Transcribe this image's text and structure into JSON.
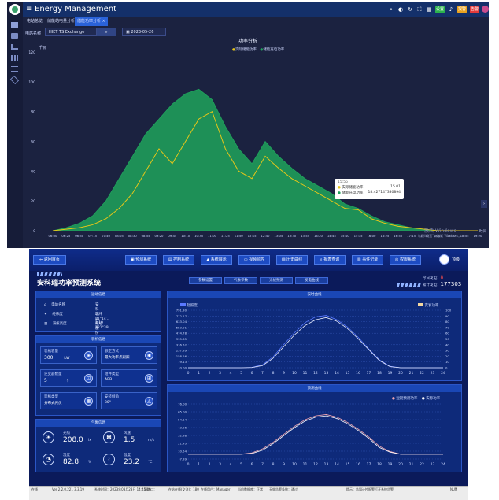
{
  "app1": {
    "title": "Energy Management",
    "tabs": [
      "电站总览",
      "储能站电量分析 ×",
      "储能功率分析 ×"
    ],
    "station_label": "电站名称",
    "station_value": "HIET TS Exchange",
    "date_value": "2023-05-26",
    "chart_title": "功率分析",
    "legend": [
      "实际储能功率",
      "储能充电功率"
    ],
    "y_unit": "千瓦",
    "x_axis_label": "时间",
    "tooltip": {
      "time": "15:55",
      "row1_label": "实际储能功率",
      "row1_value": "15.01",
      "row2_label": "储能充电功率",
      "row2_value": "18.427147330894"
    },
    "badges": [
      "设置",
      "报警",
      "告警"
    ],
    "watermark_line1": "激活 Windows",
    "watermark_line2": "转到“设置”以激活 Windows。",
    "colors": {
      "series_actual": "#e6c619",
      "series_charge": "#1fa35c",
      "background": "#1b2240"
    }
  },
  "chart_data": [
    {
      "type": "area",
      "title": "功率分析",
      "ylabel": "千瓦",
      "xlabel": "时间",
      "ylim": [
        0,
        120
      ],
      "yticks": [
        0,
        20,
        40,
        60,
        80,
        100,
        120
      ],
      "legend_placement": "top-center",
      "grid": false,
      "x": [
        "06:00",
        "06:25",
        "06:50",
        "07:15",
        "07:40",
        "08:05",
        "08:30",
        "08:55",
        "09:20",
        "09:45",
        "10:10",
        "10:35",
        "11:00",
        "11:25",
        "11:50",
        "12:15",
        "12:40",
        "13:05",
        "13:30",
        "13:55",
        "14:20",
        "14:45",
        "15:10",
        "15:35",
        "16:00",
        "16:25",
        "16:50",
        "17:15",
        "17:40",
        "18:05",
        "18:30",
        "18:55",
        "19:20"
      ],
      "series": [
        {
          "name": "储能充电功率",
          "color": "#1fa35c",
          "values": [
            0,
            2,
            5,
            10,
            20,
            35,
            50,
            65,
            75,
            85,
            92,
            95,
            88,
            70,
            55,
            45,
            60,
            50,
            42,
            35,
            30,
            25,
            18,
            15,
            10,
            6,
            4,
            2,
            1,
            0,
            0,
            0,
            0
          ]
        },
        {
          "name": "实际储能功率",
          "color": "#e6c619",
          "values": [
            0,
            1,
            2,
            4,
            8,
            15,
            25,
            40,
            55,
            45,
            60,
            75,
            80,
            55,
            40,
            35,
            50,
            42,
            35,
            30,
            25,
            20,
            15,
            14,
            8,
            5,
            3,
            2,
            1,
            0,
            0,
            0,
            0
          ]
        }
      ]
    },
    {
      "type": "line",
      "title": "实时曲线",
      "x": [
        0,
        1,
        2,
        3,
        4,
        5,
        6,
        7,
        8,
        9,
        10,
        11,
        12,
        13,
        14,
        15,
        16,
        17,
        18,
        19,
        20,
        21,
        22,
        23,
        24
      ],
      "yticks_left": [
        "0.00",
        "79.13",
        "158.26",
        "237.39",
        "316.52",
        "395.65",
        "474.78",
        "553.91",
        "633.04",
        "712.17",
        "791.30"
      ],
      "yticks_right": [
        0,
        10,
        20,
        30,
        40,
        50,
        60,
        70,
        80,
        90,
        100
      ],
      "legend": [
        "辐照度",
        "实发功率"
      ],
      "series": [
        {
          "name": "辐照度",
          "color": "#5a79ff",
          "values": [
            0,
            0,
            0,
            0,
            0,
            0,
            5,
            40,
            150,
            320,
            480,
            620,
            700,
            720,
            660,
            560,
            420,
            260,
            110,
            20,
            0,
            0,
            0,
            0,
            0
          ]
        },
        {
          "name": "实发功率",
          "color": "#e8ecff",
          "values": [
            0,
            0,
            0,
            0,
            0,
            0,
            3,
            30,
            130,
            290,
            450,
            580,
            660,
            690,
            640,
            540,
            400,
            250,
            100,
            15,
            0,
            0,
            0,
            0,
            0
          ]
        }
      ]
    },
    {
      "type": "line",
      "title": "预测曲线",
      "x": [
        0,
        1,
        2,
        3,
        4,
        5,
        6,
        7,
        8,
        9,
        10,
        11,
        12,
        13,
        14,
        15,
        16,
        17,
        18,
        19,
        20,
        21,
        22,
        23,
        24
      ],
      "yticks": [
        "-7.39",
        "10.54",
        "21.43",
        "32.38",
        "43.26",
        "54.14",
        "65.00",
        "76.00"
      ],
      "legend": [
        "短期预测功率",
        "实际功率"
      ],
      "series": [
        {
          "name": "短期预测功率",
          "color": "#f3a6b0",
          "values": [
            0,
            0,
            0,
            0,
            0,
            0,
            2,
            8,
            18,
            30,
            42,
            52,
            58,
            60,
            56,
            48,
            38,
            26,
            12,
            4,
            0,
            0,
            0,
            0,
            0
          ]
        },
        {
          "name": "实际功率",
          "color": "#ffffff",
          "values": [
            0,
            0,
            0,
            0,
            0,
            0,
            1,
            6,
            16,
            28,
            40,
            50,
            56,
            58,
            54,
            46,
            36,
            24,
            10,
            3,
            0,
            0,
            0,
            0,
            0
          ]
        }
      ]
    }
  ],
  "app2": {
    "back": "返回首页",
    "buttons": [
      "预测系统",
      "控制系统",
      "系统展示",
      "视频监控",
      "历史曲线",
      "报表查询",
      "事件记录",
      "权限系统"
    ],
    "user": "顶级",
    "title": "安科瑞功率预测系统",
    "subtabs": [
      "参数设置",
      "气象参数",
      "光伏预测",
      "发电曲线"
    ],
    "today_label": "今日发电：",
    "today_value": "8",
    "total_label": "累计发电：",
    "total_value": "177303",
    "basic_head": "运动信息",
    "basic": [
      {
        "icon": "home-icon",
        "label": "电站名称",
        "value": "安科瑞电气股份有限公司"
      },
      {
        "icon": "compass-icon",
        "label": "经纬度",
        "value": "北纬31°14′，东经121°39′"
      },
      {
        "icon": "altitude-icon",
        "label": "海拔高度",
        "value": "2.19米"
      }
    ],
    "params_head": "装机信息",
    "params": [
      {
        "label": "装机容量",
        "value": "300",
        "unit": "kW"
      },
      {
        "label": "额定方式",
        "value": "最大功率点跟踪"
      },
      {
        "label": "逆变器数量",
        "value": "5",
        "unit": "个"
      },
      {
        "label": "组件类型",
        "value": "ABB"
      },
      {
        "label": "装机类型",
        "value": "分布式光伏"
      },
      {
        "label": "安装倾角",
        "value": "30°"
      }
    ],
    "weather_head": "气象信息",
    "weather": [
      {
        "label": "光照",
        "value": "208.0",
        "unit": "lx"
      },
      {
        "label": "风速",
        "value": "1.5",
        "unit": "m/s"
      },
      {
        "label": "湿度",
        "value": "82.8",
        "unit": "%"
      },
      {
        "label": "温度",
        "value": "23.2",
        "unit": "°C"
      }
    ],
    "chart1_head": "实时曲线",
    "chart2_head": "预测曲线",
    "status": [
      "在线",
      "Ver 2.2.0.221 3.3.19",
      "系统时间：2023年03月23日 14:45:06",
      "通信口：",
      "在站在线(交流)：180",
      "在线用户：Manager",
      "当前数据库：正常",
      "无效告警条数：通过",
      "提示：告知计控报警打开系统告警",
      "NUM"
    ]
  }
}
